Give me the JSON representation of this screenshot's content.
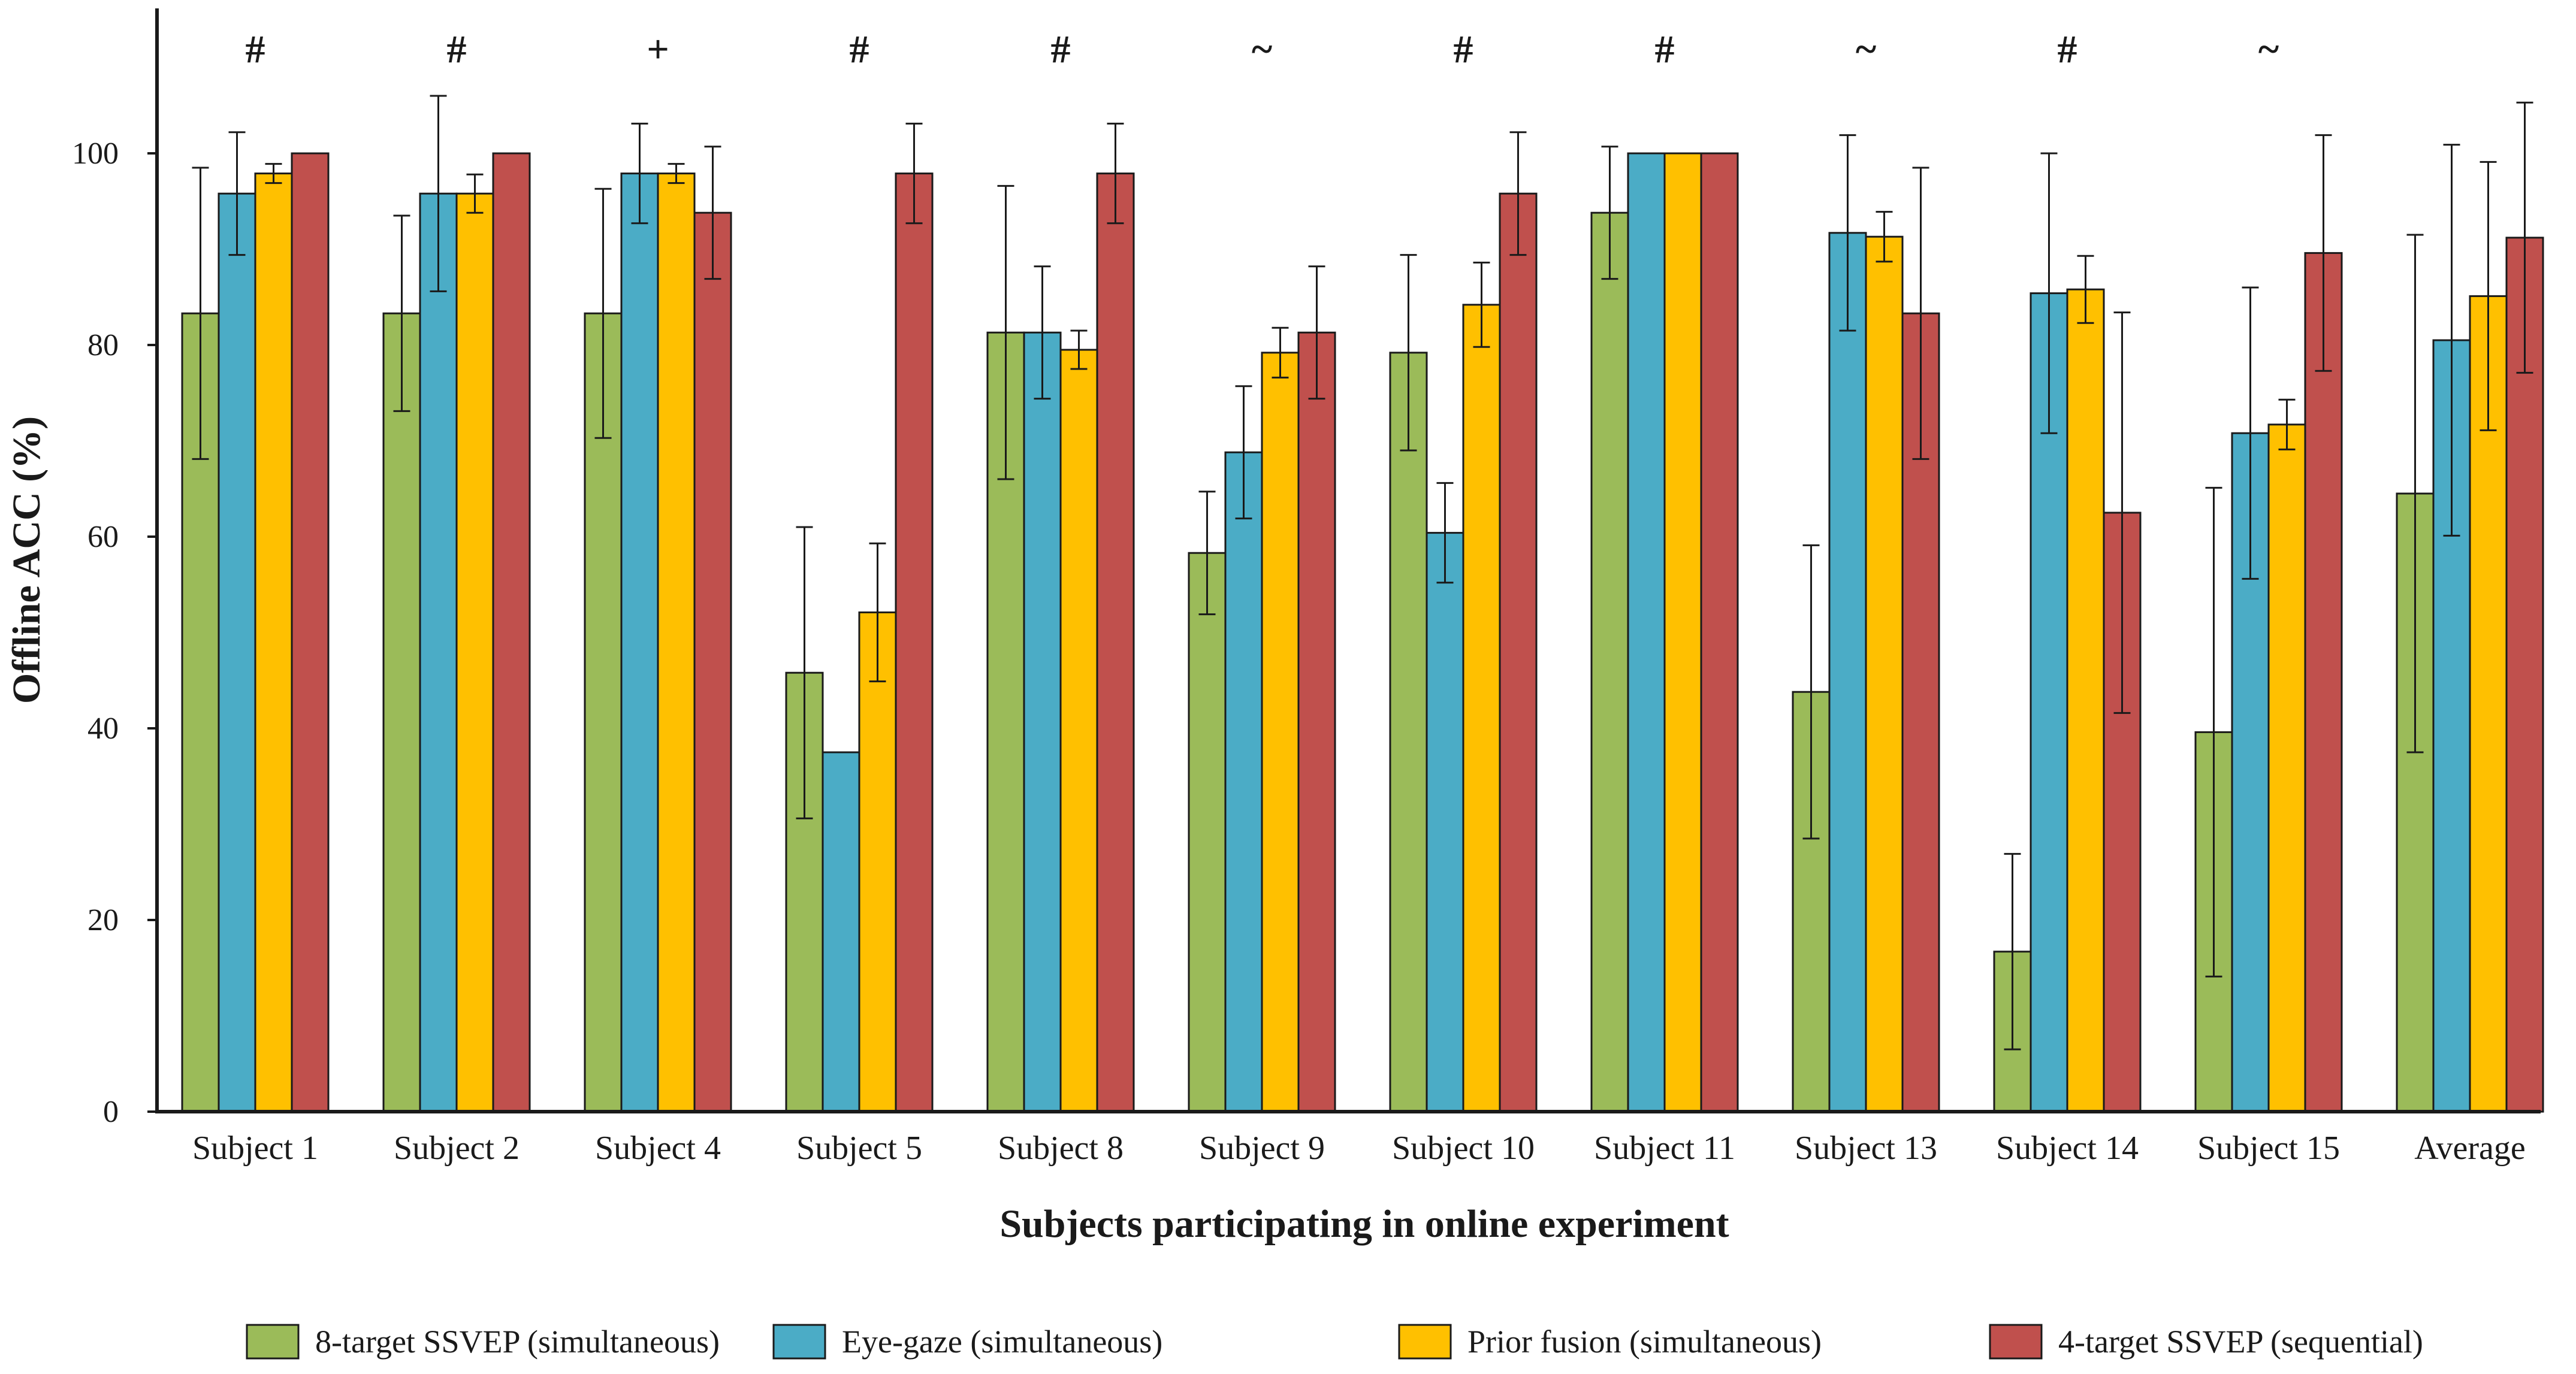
{
  "chart_data": {
    "type": "bar",
    "title": "",
    "xlabel": "Subjects participating in online experiment",
    "ylabel": "Offline ACC (%)",
    "ylim": [
      0,
      115
    ],
    "yticks": [
      0,
      20,
      40,
      60,
      80,
      100
    ],
    "grid": false,
    "legend_position": "bottom",
    "categories": [
      "Subject 1",
      "Subject 2",
      "Subject 4",
      "Subject 5",
      "Subject 8",
      "Subject 9",
      "Subject 10",
      "Subject 11",
      "Subject 13",
      "Subject 14",
      "Subject 15",
      "Average"
    ],
    "significance_marks": [
      "#",
      "#",
      "+",
      "#",
      "#",
      "~",
      "#",
      "#",
      "~",
      "#",
      "~",
      ""
    ],
    "series": [
      {
        "name": "8-target SSVEP (simultaneous)",
        "color": "#9bbb59",
        "values": [
          83.3,
          83.3,
          83.3,
          45.8,
          81.3,
          58.3,
          79.2,
          93.8,
          43.8,
          16.7,
          39.6,
          64.5
        ],
        "errors": [
          15.2,
          10.2,
          13.0,
          15.2,
          15.3,
          6.4,
          10.2,
          6.9,
          15.3,
          10.2,
          25.5,
          27.0
        ]
      },
      {
        "name": "Eye-gaze (simultaneous)",
        "color": "#4bacc6",
        "values": [
          95.8,
          95.8,
          97.9,
          37.5,
          81.3,
          68.8,
          60.4,
          100.0,
          91.7,
          85.4,
          70.8,
          80.5
        ],
        "errors": [
          6.4,
          10.2,
          5.2,
          0,
          6.9,
          6.9,
          5.2,
          0,
          10.2,
          14.6,
          15.2,
          20.4
        ]
      },
      {
        "name": "Prior fusion (simultaneous)",
        "color": "#ffc000",
        "values": [
          97.9,
          95.8,
          97.9,
          52.1,
          79.5,
          79.2,
          84.2,
          100.0,
          91.3,
          85.8,
          71.7,
          85.1
        ],
        "errors": [
          1.0,
          2.0,
          1.0,
          7.2,
          2.0,
          2.6,
          4.4,
          0,
          2.6,
          3.5,
          2.6,
          14.0
        ]
      },
      {
        "name": "4-target SSVEP (sequential)",
        "color": "#c0504d",
        "values": [
          100.0,
          100.0,
          93.8,
          97.9,
          97.9,
          81.3,
          95.8,
          100.0,
          83.3,
          62.5,
          89.6,
          91.2
        ],
        "errors": [
          0,
          0,
          6.9,
          5.2,
          5.2,
          6.9,
          6.4,
          0,
          15.2,
          20.9,
          12.3,
          14.1
        ]
      }
    ]
  }
}
